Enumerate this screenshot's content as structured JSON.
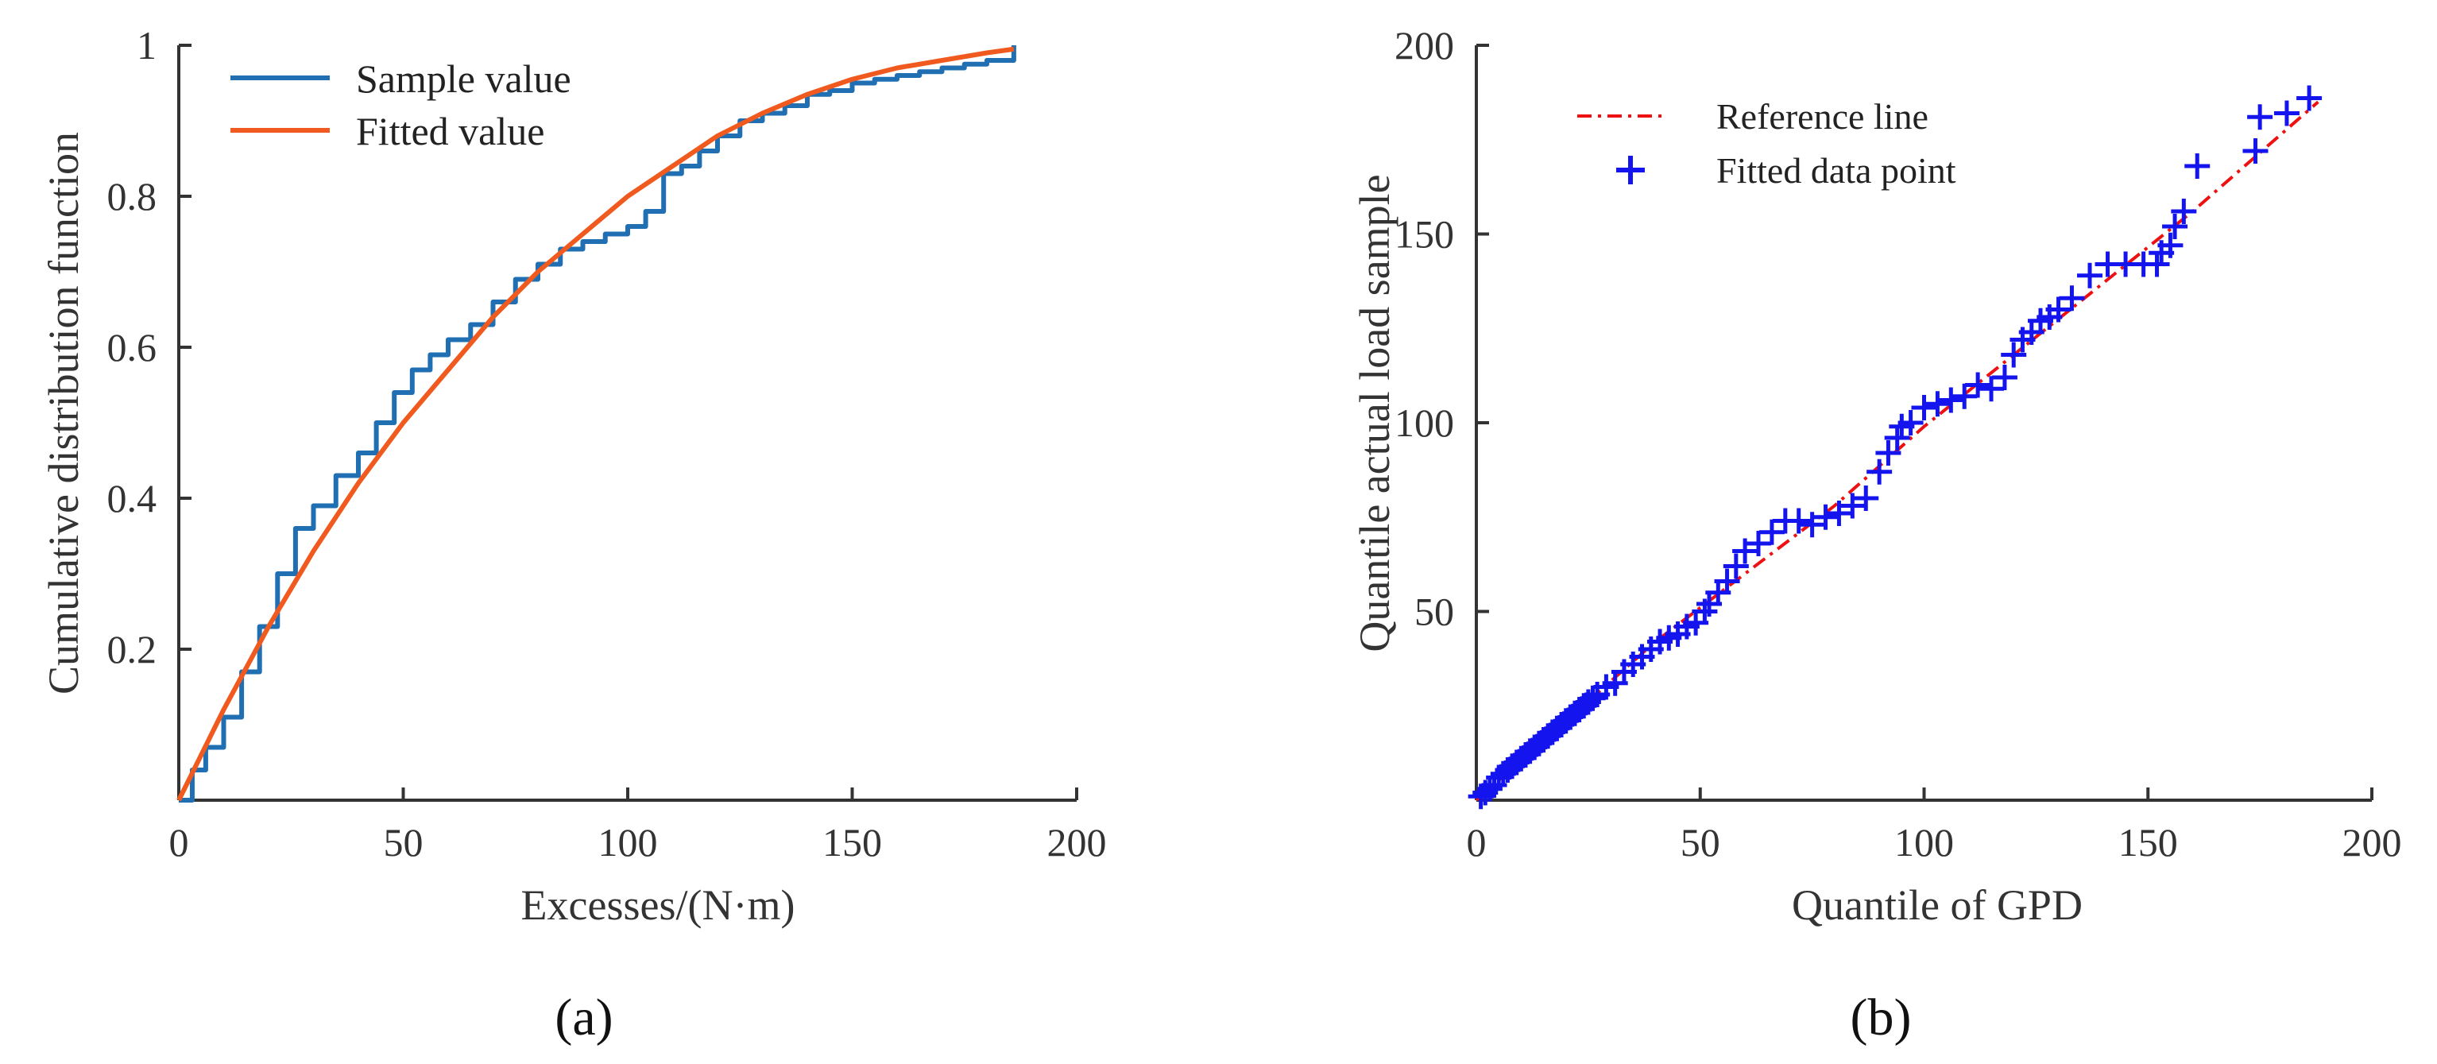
{
  "chart_data": [
    {
      "type": "line",
      "panel": "a",
      "xlabel": "Excesses/(N·m)",
      "ylabel": "Cumulative distribution function",
      "xlim": [
        0,
        200
      ],
      "ylim": [
        0,
        1
      ],
      "xticks": [
        "0",
        "50",
        "100",
        "150",
        "200"
      ],
      "yticks": [
        "0.2",
        "0.4",
        "0.6",
        "0.8",
        "1"
      ],
      "legend_position": "top-left",
      "series": [
        {
          "name": "Sample value",
          "color": "#1f6fb2",
          "style": "step",
          "x": [
            0,
            3,
            6,
            10,
            14,
            18,
            22,
            26,
            30,
            35,
            40,
            44,
            48,
            52,
            56,
            60,
            65,
            70,
            75,
            80,
            85,
            90,
            95,
            100,
            104,
            108,
            112,
            116,
            120,
            125,
            130,
            135,
            140,
            145,
            150,
            155,
            160,
            165,
            170,
            175,
            180,
            186
          ],
          "y": [
            0,
            0.04,
            0.07,
            0.11,
            0.17,
            0.23,
            0.3,
            0.36,
            0.39,
            0.43,
            0.46,
            0.5,
            0.54,
            0.57,
            0.59,
            0.61,
            0.63,
            0.66,
            0.69,
            0.71,
            0.73,
            0.74,
            0.75,
            0.76,
            0.78,
            0.83,
            0.84,
            0.86,
            0.88,
            0.9,
            0.91,
            0.92,
            0.935,
            0.94,
            0.95,
            0.955,
            0.96,
            0.965,
            0.97,
            0.975,
            0.98,
            1.0
          ]
        },
        {
          "name": "Fitted value",
          "color": "#f05a1e",
          "style": "smooth",
          "x": [
            0,
            10,
            20,
            30,
            40,
            50,
            60,
            70,
            80,
            90,
            100,
            110,
            120,
            130,
            140,
            150,
            160,
            170,
            180,
            186
          ],
          "y": [
            0,
            0.12,
            0.23,
            0.33,
            0.42,
            0.5,
            0.57,
            0.64,
            0.7,
            0.75,
            0.8,
            0.84,
            0.88,
            0.91,
            0.935,
            0.955,
            0.97,
            0.98,
            0.99,
            0.995
          ]
        }
      ],
      "caption": "(a)"
    },
    {
      "type": "scatter",
      "panel": "b",
      "xlabel": "Quantile of GPD",
      "ylabel": "Quantile actual load sample",
      "xlim": [
        0,
        200
      ],
      "ylim": [
        0,
        200
      ],
      "xticks": [
        "0",
        "50",
        "100",
        "150",
        "200"
      ],
      "yticks": [
        "50",
        "100",
        "150",
        "200"
      ],
      "legend_position": "top-left",
      "series": [
        {
          "name": "Reference line",
          "color": "#ee1111",
          "style": "dash-dot",
          "x": [
            0,
            20,
            40,
            60,
            80,
            100,
            120,
            140,
            160,
            188
          ],
          "y": [
            0,
            21,
            42,
            60,
            78,
            99,
            118,
            137,
            156,
            185
          ]
        },
        {
          "name": "Fitted data point",
          "color": "#1414ee",
          "style": "plus",
          "x": [
            1,
            2,
            3,
            4,
            5,
            6,
            7,
            8,
            9,
            10,
            11,
            12,
            13,
            14,
            15,
            16,
            17,
            18,
            19,
            20,
            21,
            22,
            23,
            24,
            25,
            26,
            27,
            29,
            31,
            33,
            35,
            37,
            39,
            41,
            43,
            45,
            47,
            49,
            51,
            52,
            54,
            56,
            58,
            60,
            63,
            66,
            69,
            72,
            75,
            78,
            81,
            84,
            87,
            90,
            92,
            94,
            95,
            97,
            100,
            103,
            106,
            109,
            112,
            115,
            118,
            120,
            122,
            124,
            126,
            128,
            130,
            133,
            137,
            141,
            145,
            149,
            152,
            153,
            155,
            156,
            158,
            161,
            174,
            175,
            181,
            186
          ],
          "y": [
            1,
            2,
            3,
            4,
            6,
            7,
            8,
            9,
            10,
            11,
            12,
            13,
            14,
            15,
            16,
            17,
            18,
            19,
            20,
            21,
            22,
            23,
            24,
            25,
            26,
            27,
            28,
            30,
            31,
            34,
            36,
            38,
            40,
            42,
            43,
            44,
            46,
            47,
            50,
            52,
            55,
            58,
            62,
            66,
            68,
            71,
            74,
            74,
            73,
            75,
            76,
            78,
            80,
            87,
            92,
            96,
            99,
            100,
            104,
            105,
            106,
            107,
            110,
            109,
            112,
            118,
            122,
            124,
            127,
            128,
            130,
            133,
            139,
            142,
            142,
            142,
            142,
            145,
            147,
            152,
            156,
            168,
            172,
            181,
            182,
            186
          ]
        }
      ],
      "caption": "(b)"
    }
  ]
}
